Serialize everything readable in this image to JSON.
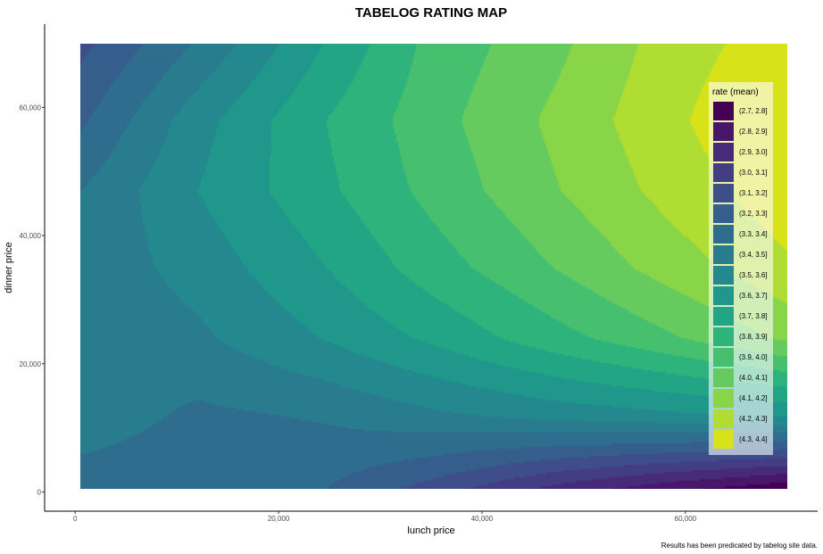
{
  "chart_data": {
    "type": "contour",
    "title": "TABELOG RATING MAP",
    "xlabel": "lunch price",
    "ylabel": "dinner price",
    "caption": "Results has been predicated by tabelog site data.",
    "x_ticks": [
      0,
      20000,
      40000,
      60000
    ],
    "x_tick_labels": [
      "0",
      "20,000",
      "40,000",
      "60,000"
    ],
    "y_ticks": [
      0,
      20000,
      40000,
      60000
    ],
    "y_tick_labels": [
      "0",
      "20,000",
      "40,000",
      "60,000"
    ],
    "xlim": [
      -3000,
      73000
    ],
    "ylim": [
      -3000,
      73000
    ],
    "data_extent": {
      "x": [
        500,
        70000
      ],
      "y": [
        500,
        70000
      ]
    },
    "legend": {
      "title": "rate (mean)",
      "placement": "right-inside",
      "entries": [
        {
          "label": "(2.7, 2.8]",
          "color": "#440154"
        },
        {
          "label": "(2.8, 2.9]",
          "color": "#481769"
        },
        {
          "label": "(2.9, 3.0]",
          "color": "#472A7A"
        },
        {
          "label": "(3.0, 3.1]",
          "color": "#433D84"
        },
        {
          "label": "(3.1, 3.2]",
          "color": "#3D4E8A"
        },
        {
          "label": "(3.2, 3.3]",
          "color": "#355E8D"
        },
        {
          "label": "(3.3, 3.4]",
          "color": "#2E6D8E"
        },
        {
          "label": "(3.4, 3.5]",
          "color": "#297B8E"
        },
        {
          "label": "(3.5, 3.6]",
          "color": "#23898E"
        },
        {
          "label": "(3.6, 3.7]",
          "color": "#1F978B"
        },
        {
          "label": "(3.7, 3.8]",
          "color": "#21A585"
        },
        {
          "label": "(3.8, 3.9]",
          "color": "#2EB37C"
        },
        {
          "label": "(3.9, 4.0]",
          "color": "#46C06F"
        },
        {
          "label": "(4.0, 4.1]",
          "color": "#65CB5E"
        },
        {
          "label": "(4.1, 4.2]",
          "color": "#89D548"
        },
        {
          "label": "(4.2, 4.3]",
          "color": "#B0DD31"
        },
        {
          "label": "(4.3, 4.4]",
          "color": "#D8E219"
        }
      ]
    },
    "grid_x": [
      500,
      12000,
      24000,
      35000,
      47000,
      58000,
      70000
    ],
    "grid_y": [
      500,
      12000,
      24000,
      35000,
      47000,
      58000,
      70000
    ],
    "z": [
      [
        3.35,
        3.33,
        3.31,
        3.16,
        2.97,
        2.84,
        2.72
      ],
      [
        3.46,
        3.38,
        3.41,
        3.48,
        3.54,
        3.58,
        3.62
      ],
      [
        3.41,
        3.48,
        3.6,
        3.72,
        3.86,
        3.98,
        4.12
      ],
      [
        3.43,
        3.54,
        3.69,
        3.85,
        4.0,
        4.14,
        4.28
      ],
      [
        3.4,
        3.6,
        3.77,
        3.93,
        4.09,
        4.23,
        4.37
      ],
      [
        3.28,
        3.56,
        3.79,
        3.96,
        4.12,
        4.27,
        4.42
      ],
      [
        3.17,
        3.41,
        3.69,
        3.93,
        4.07,
        4.24,
        4.36
      ]
    ]
  }
}
